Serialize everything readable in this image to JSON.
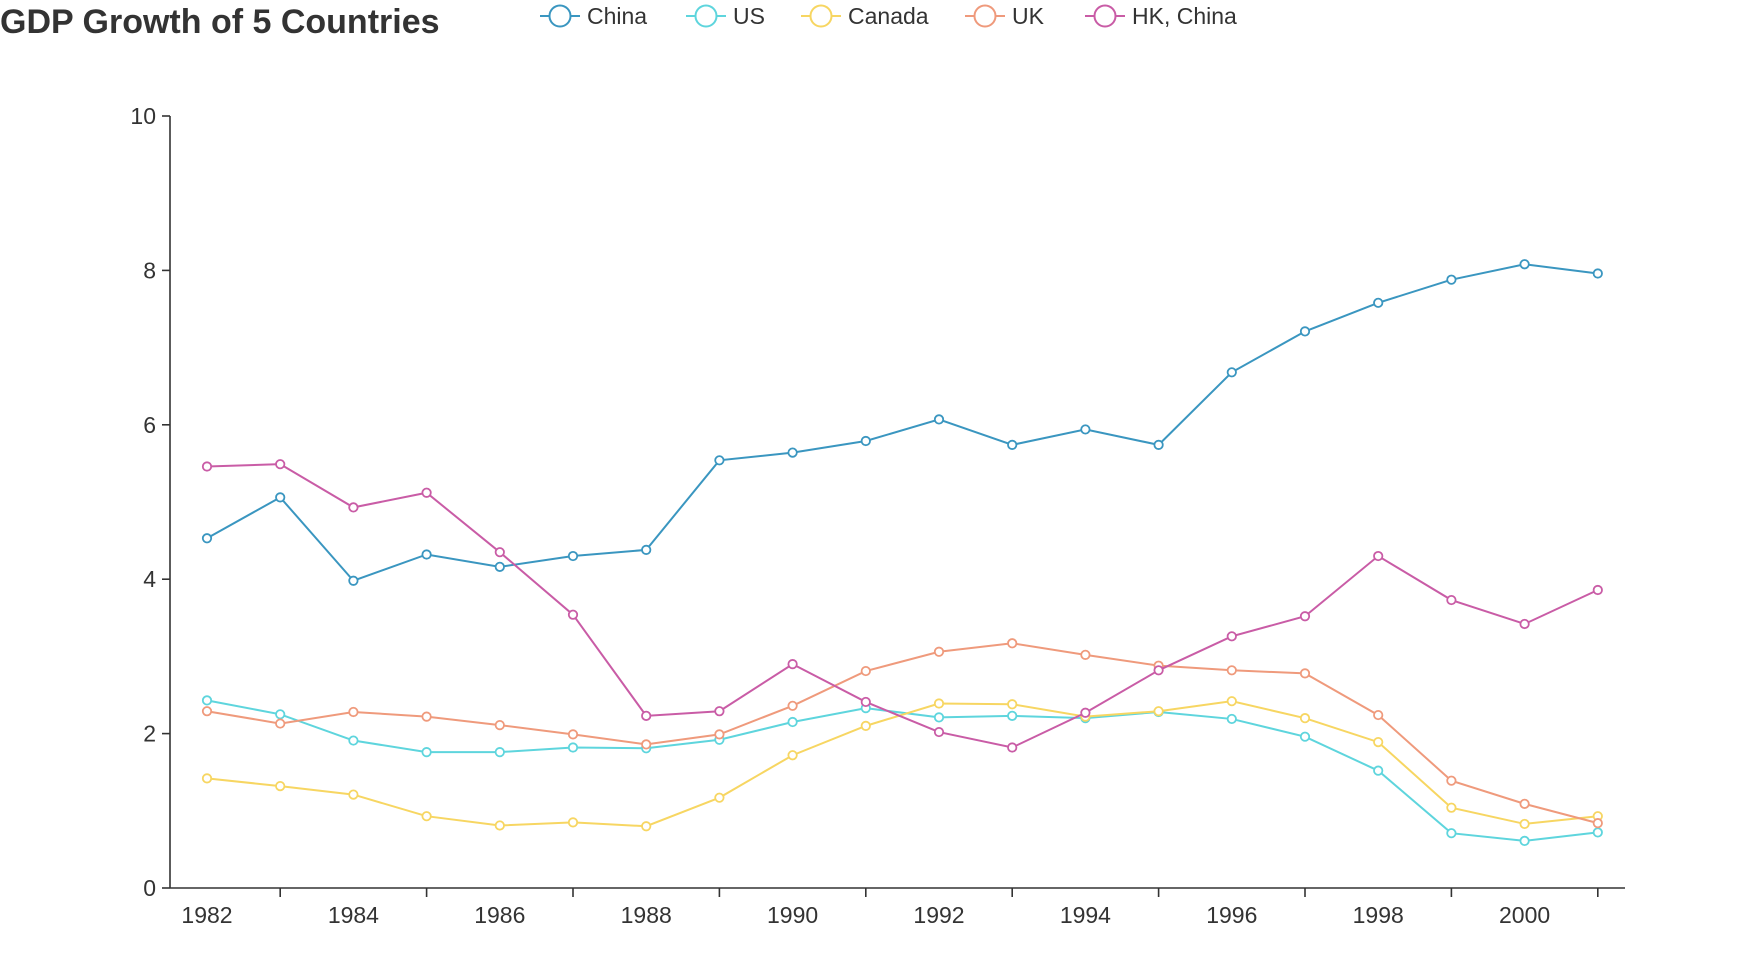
{
  "chart_data": {
    "type": "line",
    "title": "GDP Growth of 5 Countries",
    "xlabel": "",
    "ylabel": "",
    "ylim": [
      0,
      10
    ],
    "yticks": [
      0,
      2,
      4,
      6,
      8,
      10
    ],
    "xticks": [
      1982,
      1984,
      1986,
      1988,
      1990,
      1992,
      1994,
      1996,
      1998,
      2000
    ],
    "grid": false,
    "legend": "top",
    "x": [
      1982,
      1983,
      1984,
      1985,
      1986,
      1987,
      1988,
      1989,
      1990,
      1991,
      1992,
      1993,
      1994,
      1995,
      1996,
      1997,
      1998,
      1999,
      2000,
      2001
    ],
    "series": [
      {
        "name": "China",
        "color": "#3a96c0",
        "values": [
          4.53,
          5.06,
          3.98,
          4.32,
          4.16,
          4.3,
          4.38,
          5.54,
          5.64,
          5.79,
          6.07,
          5.74,
          5.94,
          5.74,
          6.68,
          7.21,
          7.58,
          7.88,
          8.08,
          7.96
        ]
      },
      {
        "name": "US",
        "color": "#5ed5dd",
        "values": [
          2.43,
          2.25,
          1.91,
          1.76,
          1.76,
          1.82,
          1.81,
          1.92,
          2.15,
          2.33,
          2.21,
          2.23,
          2.2,
          2.28,
          2.19,
          1.96,
          1.52,
          0.71,
          0.61,
          0.72
        ]
      },
      {
        "name": "Canada",
        "color": "#f7d662",
        "values": [
          1.42,
          1.32,
          1.21,
          0.93,
          0.81,
          0.85,
          0.8,
          1.17,
          1.72,
          2.1,
          2.39,
          2.38,
          2.22,
          2.29,
          2.42,
          2.2,
          1.89,
          1.04,
          0.83,
          0.93
        ]
      },
      {
        "name": "UK",
        "color": "#ef9a7c",
        "values": [
          2.29,
          2.13,
          2.28,
          2.22,
          2.11,
          1.99,
          1.86,
          1.99,
          2.36,
          2.81,
          3.06,
          3.17,
          3.02,
          2.88,
          2.82,
          2.78,
          2.24,
          1.39,
          1.09,
          0.84
        ]
      },
      {
        "name": "HK, China",
        "color": "#c95ca6",
        "values": [
          5.46,
          5.49,
          4.93,
          5.12,
          4.35,
          3.54,
          2.23,
          2.29,
          2.9,
          2.41,
          2.02,
          1.82,
          2.27,
          2.82,
          3.26,
          3.52,
          4.3,
          3.73,
          3.42,
          3.86
        ]
      }
    ]
  }
}
